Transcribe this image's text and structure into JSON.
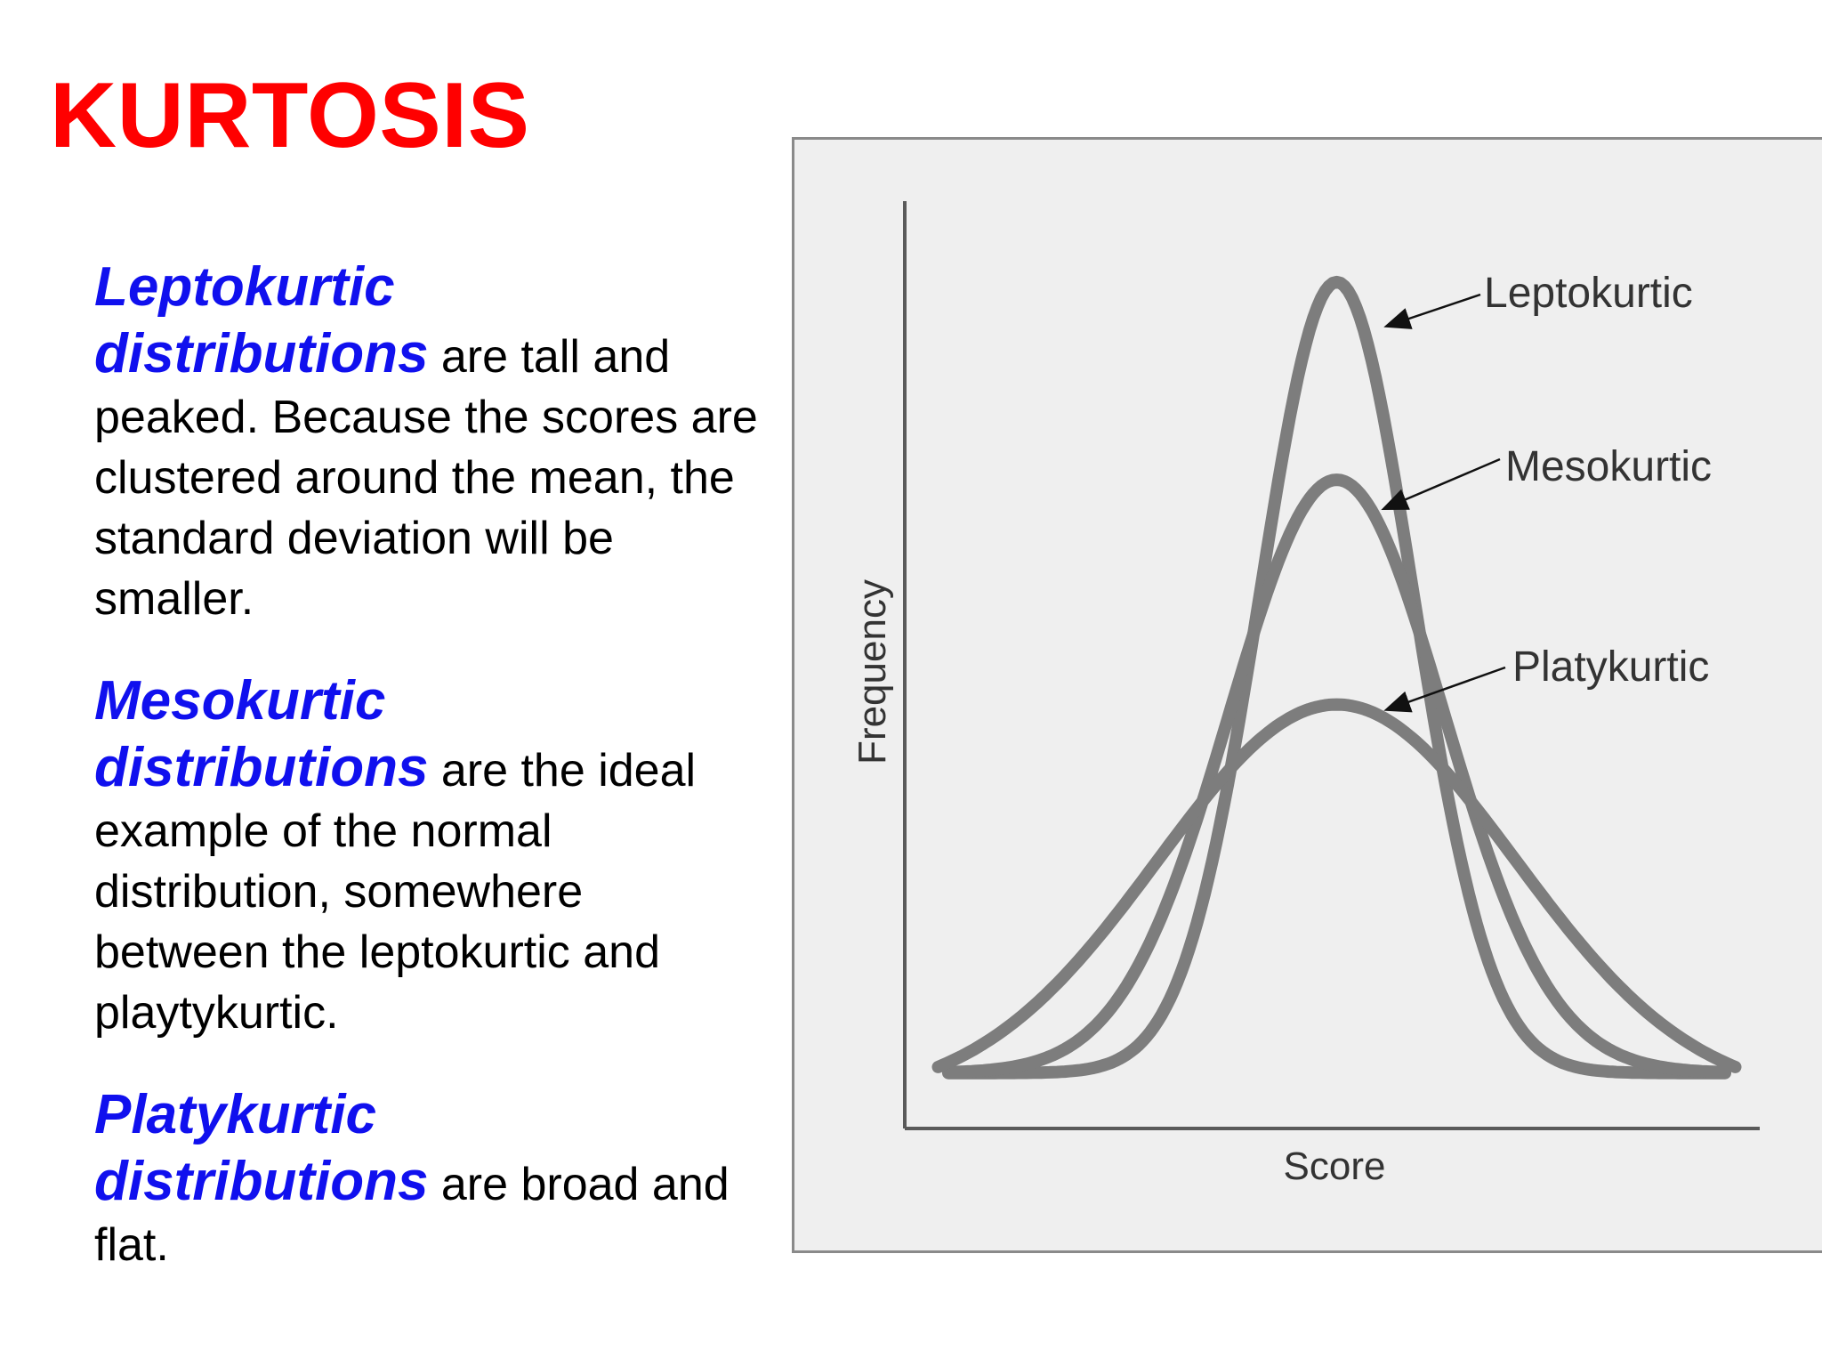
{
  "slide": {
    "title": "KURTOSIS"
  },
  "text": {
    "paragraphs": [
      {
        "term_line1": "Leptokurtic",
        "term_line2": "distributions",
        "body": " are tall and peaked. Because the scores are clustered around the mean, the standard deviation will be smaller."
      },
      {
        "term_line1": "Mesokurtic",
        "term_line2": "distributions",
        "body": " are the ideal example of the normal distribution, somewhere between the leptokurtic and playtykurtic."
      },
      {
        "term_line1": "Platykurtic",
        "term_line2": "distributions",
        "body": " are broad and flat."
      }
    ]
  },
  "colors": {
    "title": "#ff0000",
    "terms": "#1010ee",
    "curves": "#7d7d7d",
    "panel_background": "#efefef"
  },
  "chart_data": {
    "type": "line",
    "title": "",
    "xlabel": "Score",
    "ylabel": "Frequency",
    "xlim": [
      -4,
      4
    ],
    "ylim": [
      0,
      1
    ],
    "grid": false,
    "legend": "labels with arrows, right of curves",
    "series": [
      {
        "name": "Leptokurtic",
        "mean": 0,
        "sd": 0.75,
        "peak": 0.91,
        "baseline": 0.03
      },
      {
        "name": "Mesokurtic",
        "mean": 0,
        "sd": 1.05,
        "peak": 0.69,
        "baseline": 0.03
      },
      {
        "name": "Platykurtic",
        "mean": 0,
        "sd": 1.75,
        "peak": 0.44,
        "baseline": 0.0
      }
    ]
  }
}
